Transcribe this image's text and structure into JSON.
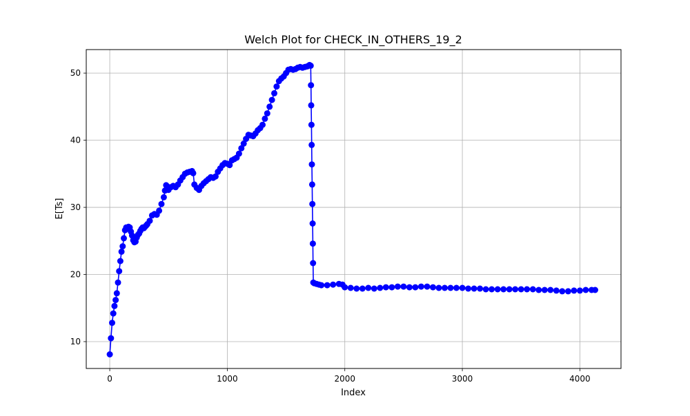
{
  "chart_data": {
    "type": "line",
    "title": "Welch Plot for CHECK_IN_OTHERS_19_2",
    "xlabel": "Index",
    "ylabel": "E[Ts]",
    "xlim": [
      -200,
      4350
    ],
    "ylim": [
      6,
      53.5
    ],
    "xticks": [
      0,
      1000,
      2000,
      3000,
      4000
    ],
    "yticks": [
      10,
      20,
      30,
      40,
      50
    ],
    "grid": true,
    "legend": "none",
    "series": [
      {
        "color": "#0000ff",
        "marker": "circle",
        "points": [
          [
            0,
            8.1
          ],
          [
            10,
            10.5
          ],
          [
            20,
            12.8
          ],
          [
            30,
            14.2
          ],
          [
            40,
            15.3
          ],
          [
            50,
            16.2
          ],
          [
            60,
            17.2
          ],
          [
            70,
            18.8
          ],
          [
            80,
            20.5
          ],
          [
            90,
            22.0
          ],
          [
            100,
            23.4
          ],
          [
            110,
            24.2
          ],
          [
            120,
            25.4
          ],
          [
            130,
            26.6
          ],
          [
            140,
            27.0
          ],
          [
            150,
            26.9
          ],
          [
            160,
            27.1
          ],
          [
            170,
            27.0
          ],
          [
            180,
            26.4
          ],
          [
            190,
            25.8
          ],
          [
            200,
            25.1
          ],
          [
            210,
            24.8
          ],
          [
            220,
            24.9
          ],
          [
            230,
            25.5
          ],
          [
            240,
            25.9
          ],
          [
            250,
            26.1
          ],
          [
            260,
            26.5
          ],
          [
            270,
            26.8
          ],
          [
            280,
            27.0
          ],
          [
            290,
            26.9
          ],
          [
            300,
            27.1
          ],
          [
            310,
            27.3
          ],
          [
            320,
            27.5
          ],
          [
            340,
            28.0
          ],
          [
            360,
            28.8
          ],
          [
            380,
            29.0
          ],
          [
            400,
            28.9
          ],
          [
            420,
            29.5
          ],
          [
            440,
            30.5
          ],
          [
            460,
            31.5
          ],
          [
            470,
            32.5
          ],
          [
            480,
            33.3
          ],
          [
            490,
            33.1
          ],
          [
            500,
            32.6
          ],
          [
            520,
            33.0
          ],
          [
            540,
            33.2
          ],
          [
            560,
            33.0
          ],
          [
            580,
            33.4
          ],
          [
            600,
            34.0
          ],
          [
            620,
            34.5
          ],
          [
            640,
            35.0
          ],
          [
            660,
            35.2
          ],
          [
            680,
            35.3
          ],
          [
            700,
            35.4
          ],
          [
            710,
            35.1
          ],
          [
            720,
            33.4
          ],
          [
            740,
            32.9
          ],
          [
            760,
            32.6
          ],
          [
            780,
            33.2
          ],
          [
            800,
            33.6
          ],
          [
            820,
            33.9
          ],
          [
            840,
            34.2
          ],
          [
            860,
            34.5
          ],
          [
            880,
            34.4
          ],
          [
            900,
            34.6
          ],
          [
            920,
            35.3
          ],
          [
            940,
            35.8
          ],
          [
            960,
            36.3
          ],
          [
            980,
            36.6
          ],
          [
            1000,
            36.5
          ],
          [
            1020,
            36.3
          ],
          [
            1040,
            37.0
          ],
          [
            1060,
            37.2
          ],
          [
            1080,
            37.4
          ],
          [
            1100,
            38.0
          ],
          [
            1120,
            38.8
          ],
          [
            1140,
            39.5
          ],
          [
            1160,
            40.2
          ],
          [
            1180,
            40.8
          ],
          [
            1200,
            40.7
          ],
          [
            1220,
            40.6
          ],
          [
            1240,
            41.0
          ],
          [
            1260,
            41.5
          ],
          [
            1280,
            41.8
          ],
          [
            1300,
            42.3
          ],
          [
            1320,
            43.2
          ],
          [
            1340,
            44.0
          ],
          [
            1360,
            45.0
          ],
          [
            1380,
            46.0
          ],
          [
            1400,
            47.0
          ],
          [
            1420,
            48.0
          ],
          [
            1440,
            48.8
          ],
          [
            1460,
            49.2
          ],
          [
            1480,
            49.5
          ],
          [
            1500,
            50.0
          ],
          [
            1520,
            50.5
          ],
          [
            1540,
            50.6
          ],
          [
            1560,
            50.5
          ],
          [
            1580,
            50.6
          ],
          [
            1600,
            50.8
          ],
          [
            1620,
            50.9
          ],
          [
            1640,
            50.8
          ],
          [
            1660,
            50.9
          ],
          [
            1680,
            51.0
          ],
          [
            1700,
            51.2
          ],
          [
            1710,
            51.1
          ],
          [
            1712,
            48.2
          ],
          [
            1714,
            45.2
          ],
          [
            1716,
            42.3
          ],
          [
            1718,
            39.3
          ],
          [
            1720,
            36.4
          ],
          [
            1722,
            33.4
          ],
          [
            1724,
            30.5
          ],
          [
            1726,
            27.6
          ],
          [
            1728,
            24.6
          ],
          [
            1730,
            21.7
          ],
          [
            1732,
            18.8
          ],
          [
            1740,
            18.7
          ],
          [
            1760,
            18.6
          ],
          [
            1780,
            18.5
          ],
          [
            1800,
            18.4
          ],
          [
            1850,
            18.4
          ],
          [
            1900,
            18.5
          ],
          [
            1950,
            18.6
          ],
          [
            1980,
            18.5
          ],
          [
            2000,
            18.1
          ],
          [
            2050,
            18.0
          ],
          [
            2100,
            17.9
          ],
          [
            2150,
            17.9
          ],
          [
            2200,
            18.0
          ],
          [
            2250,
            17.9
          ],
          [
            2300,
            18.0
          ],
          [
            2350,
            18.1
          ],
          [
            2400,
            18.1
          ],
          [
            2450,
            18.2
          ],
          [
            2500,
            18.2
          ],
          [
            2550,
            18.1
          ],
          [
            2600,
            18.1
          ],
          [
            2650,
            18.2
          ],
          [
            2700,
            18.2
          ],
          [
            2750,
            18.1
          ],
          [
            2800,
            18.0
          ],
          [
            2850,
            18.0
          ],
          [
            2900,
            18.0
          ],
          [
            2950,
            18.0
          ],
          [
            3000,
            18.0
          ],
          [
            3050,
            17.9
          ],
          [
            3100,
            17.9
          ],
          [
            3150,
            17.9
          ],
          [
            3200,
            17.8
          ],
          [
            3250,
            17.8
          ],
          [
            3300,
            17.8
          ],
          [
            3350,
            17.8
          ],
          [
            3400,
            17.8
          ],
          [
            3450,
            17.8
          ],
          [
            3500,
            17.8
          ],
          [
            3550,
            17.8
          ],
          [
            3600,
            17.8
          ],
          [
            3650,
            17.7
          ],
          [
            3700,
            17.7
          ],
          [
            3750,
            17.7
          ],
          [
            3800,
            17.6
          ],
          [
            3850,
            17.5
          ],
          [
            3900,
            17.5
          ],
          [
            3950,
            17.6
          ],
          [
            4000,
            17.6
          ],
          [
            4050,
            17.7
          ],
          [
            4100,
            17.7
          ],
          [
            4130,
            17.7
          ]
        ]
      }
    ]
  }
}
